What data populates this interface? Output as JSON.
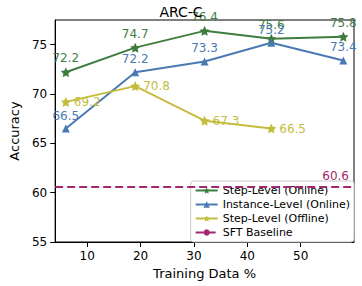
{
  "chart_data": {
    "type": "line",
    "title": "ARC-C",
    "x_label": "Training Data %",
    "y_label": "Accuracy",
    "xlim": [
      4,
      60
    ],
    "xticks": [
      10,
      20,
      30,
      40,
      50
    ],
    "ylim": [
      55,
      77.5
    ],
    "yticks": [
      55,
      60,
      65,
      70,
      75
    ],
    "legend": "lower right",
    "data_labels": true,
    "grid": false,
    "series": [
      {
        "name": "Step-Level (Online)",
        "color": "#3f7d3f",
        "marker": "star",
        "line_style": "solid",
        "x": [
          6,
          19,
          32,
          44.5,
          58
        ],
        "values": [
          72.2,
          74.7,
          76.4,
          75.6,
          75.8
        ]
      },
      {
        "name": "Instance-Level (Online)",
        "color": "#4a7ab4",
        "marker": "triangle",
        "line_style": "solid",
        "x": [
          6,
          19,
          32,
          44.5,
          58
        ],
        "values": [
          66.5,
          72.2,
          73.3,
          75.2,
          73.4
        ]
      },
      {
        "name": "Step-Level (Offline)",
        "color": "#c4bd3c",
        "marker": "star",
        "line_style": "solid",
        "x": [
          6,
          19,
          32,
          44.5
        ],
        "values": [
          69.2,
          70.8,
          67.3,
          66.5
        ]
      },
      {
        "name": "SFT Baseline",
        "color": "#a3286c",
        "type": "hline",
        "line_style": "dashed",
        "values": [
          60.6
        ]
      }
    ]
  }
}
